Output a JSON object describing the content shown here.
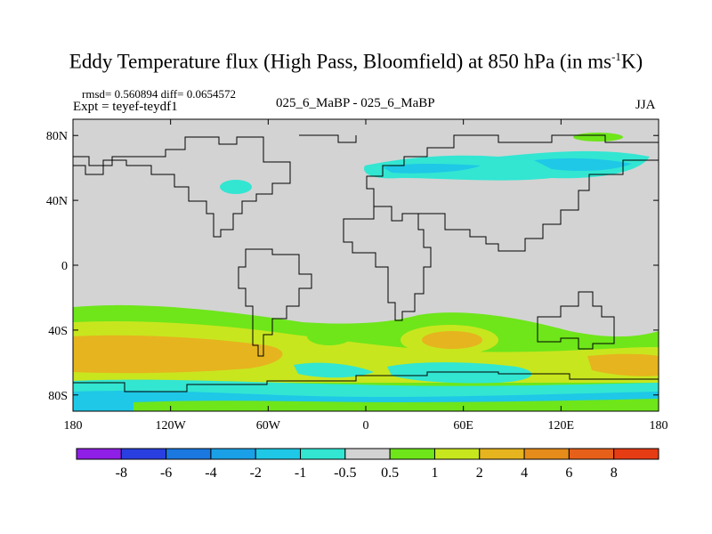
{
  "title": {
    "main": "Eddy Temperature flux (High Pass, Bloomfield) at 850 hPa (in ms",
    "sup": "-1",
    "end": "K)"
  },
  "stats": "rmsd= 0.560894 diff= 0.0654572",
  "expt": "Expt = teyef-teydf1",
  "runs": "025_6_MaBP - 025_6_MaBP",
  "season": "JJA",
  "axes": {
    "x_ticks": [
      "180",
      "120W",
      "60W",
      "0",
      "60E",
      "120E",
      "180"
    ],
    "y_ticks": [
      "80N",
      "40N",
      "0",
      "40S",
      "80S"
    ]
  },
  "colorbar": {
    "labels": [
      "-8",
      "-6",
      "-4",
      "-2",
      "-1",
      "-0.5",
      "0.5",
      "1",
      "2",
      "4",
      "6",
      "8"
    ],
    "colors": [
      "#8f1ee6",
      "#2a3fe0",
      "#1a78e0",
      "#1aa0e6",
      "#1ec8e6",
      "#32e6d2",
      "#d3d3d3",
      "#6ee61a",
      "#c8e61e",
      "#e6b41e",
      "#e68c1a",
      "#e6601a",
      "#e63c14"
    ]
  },
  "colors": {
    "background": "#d3d3d3",
    "coast": "#000000"
  }
}
